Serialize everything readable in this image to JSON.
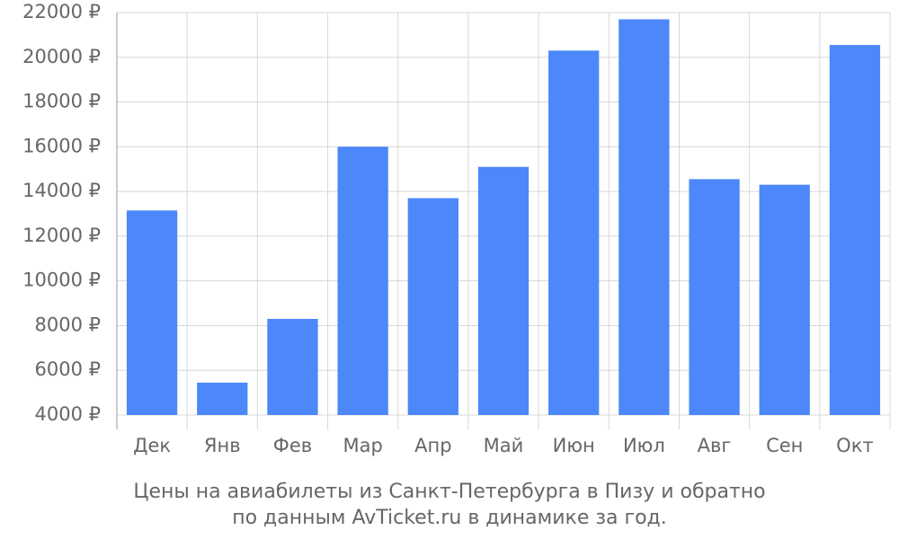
{
  "chart_data": {
    "type": "bar",
    "title": [
      "Цены на авиабилеты из Санкт-Петербурга в Пизу и обратно",
      "по данным AvTicket.ru в динамике за год."
    ],
    "categories": [
      "Дек",
      "Янв",
      "Фев",
      "Мар",
      "Апр",
      "Май",
      "Июн",
      "Июл",
      "Авг",
      "Сен",
      "Окт"
    ],
    "values": [
      13150,
      5450,
      8300,
      16000,
      13700,
      15100,
      20300,
      21700,
      14550,
      14300,
      20550
    ],
    "color": "#4d88fa",
    "ylim": [
      4000,
      22000
    ],
    "yticks": [
      {
        "value": 4000,
        "label": "4000 ₽"
      },
      {
        "value": 6000,
        "label": "6000 ₽"
      },
      {
        "value": 8000,
        "label": "8000 ₽"
      },
      {
        "value": 10000,
        "label": "10000 ₽"
      },
      {
        "value": 12000,
        "label": "12000 ₽"
      },
      {
        "value": 14000,
        "label": "14000 ₽"
      },
      {
        "value": 16000,
        "label": "16000 ₽"
      },
      {
        "value": 18000,
        "label": "18000 ₽"
      },
      {
        "value": 20000,
        "label": "20000 ₽"
      },
      {
        "value": 22000,
        "label": "22000 ₽"
      }
    ],
    "grid": true
  }
}
